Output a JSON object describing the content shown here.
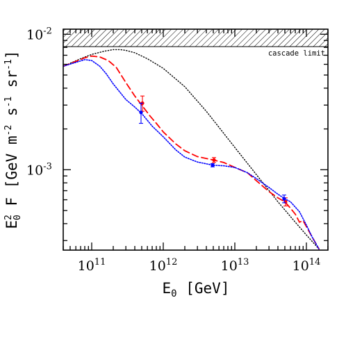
{
  "chart_data": {
    "type": "line",
    "title": "",
    "xlabel": "E₀ [GeV]",
    "xlabel_parts": {
      "main": "E",
      "sub": "0",
      "unit": "[GeV]"
    },
    "ylabel": "E₀² F [GeV m⁻² s⁻¹ sr⁻¹]",
    "ylabel_parts": {
      "main": "E",
      "sub": "0",
      "sup": "2",
      "rest": "F [GeV m",
      "e1": "-2",
      "s": " s",
      "e2": "-1",
      "sr": " sr",
      "e3": "-1",
      "close": "]"
    },
    "xscale": "log",
    "yscale": "log",
    "xlim": [
      40000000000.0,
      200000000000000.0
    ],
    "ylim": [
      0.000255,
      0.0109
    ],
    "x_ticks": [
      {
        "value": 100000000000.0,
        "base": "10",
        "exp": "11"
      },
      {
        "value": 1000000000000.0,
        "base": "10",
        "exp": "12"
      },
      {
        "value": 10000000000000.0,
        "base": "10",
        "exp": "13"
      },
      {
        "value": 100000000000000.0,
        "base": "10",
        "exp": "14"
      }
    ],
    "y_ticks": [
      {
        "value": 0.001,
        "base": "10",
        "exp": "-3"
      },
      {
        "value": 0.01,
        "base": "10",
        "exp": "-2"
      }
    ],
    "cascade_limit": {
      "label": "cascade limit",
      "y_low": 0.0081
    },
    "series": [
      {
        "style": "dotted-black",
        "color": "#000000",
        "x": [
          40000000000.0,
          70000000000.0,
          100000000000.0,
          150000000000.0,
          200000000000.0,
          250000000000.0,
          300000000000.0,
          400000000000.0,
          600000000000.0,
          1000000000000.0,
          2000000000000.0,
          4000000000000.0,
          10000000000000.0,
          20000000000000.0,
          40000000000000.0,
          70000000000000.0,
          100000000000000.0,
          150000000000000.0
        ],
        "y": [
          0.0058,
          0.0066,
          0.0071,
          0.0075,
          0.0077,
          0.0077,
          0.0076,
          0.0073,
          0.0066,
          0.0056,
          0.0041,
          0.0027,
          0.00146,
          0.00092,
          0.00058,
          0.00041,
          0.00033,
          0.00026
        ]
      },
      {
        "style": "dashed-red",
        "color": "#ff0000",
        "x": [
          40000000000.0,
          60000000000.0,
          80000000000.0,
          100000000000.0,
          130000000000.0,
          170000000000.0,
          220000000000.0,
          300000000000.0,
          400000000000.0,
          500000000000.0,
          650000000000.0,
          800000000000.0,
          1000000000000.0,
          1500000000000.0,
          2000000000000.0,
          3000000000000.0,
          5000000000000.0,
          7000000000000.0,
          10000000000000.0,
          15000000000000.0,
          20000000000000.0,
          30000000000000.0,
          40000000000000.0,
          50000000000000.0,
          60000000000000.0,
          70000000000000.0,
          80000000000000.0,
          90000000000000.0,
          100000000000000.0,
          120000000000000.0,
          150000000000000.0
        ],
        "y": [
          0.0058,
          0.0063,
          0.0067,
          0.0069,
          0.0068,
          0.0064,
          0.0057,
          0.0044,
          0.0035,
          0.003,
          0.0025,
          0.0022,
          0.0019,
          0.00155,
          0.00138,
          0.00125,
          0.00118,
          0.00113,
          0.00104,
          0.00095,
          0.00083,
          0.00069,
          0.00062,
          0.00058,
          0.00052,
          0.00047,
          0.00041,
          0.00042,
          0.00038,
          0.00032,
          0.00026
        ]
      },
      {
        "style": "dotted-blue",
        "color": "#0000ff",
        "x": [
          40000000000.0,
          60000000000.0,
          80000000000.0,
          100000000000.0,
          130000000000.0,
          160000000000.0,
          200000000000.0,
          300000000000.0,
          400000000000.0,
          500000000000.0,
          700000000000.0,
          1000000000000.0,
          1500000000000.0,
          2000000000000.0,
          3000000000000.0,
          5000000000000.0,
          7000000000000.0,
          10000000000000.0,
          15000000000000.0,
          20000000000000.0,
          30000000000000.0,
          40000000000000.0,
          50000000000000.0,
          60000000000000.0,
          80000000000000.0,
          100000000000000.0,
          120000000000000.0,
          150000000000000.0
        ],
        "y": [
          0.0058,
          0.0062,
          0.0065,
          0.0064,
          0.0058,
          0.0051,
          0.0043,
          0.0033,
          0.0029,
          0.0026,
          0.0021,
          0.00175,
          0.0014,
          0.00124,
          0.00114,
          0.00108,
          0.00107,
          0.00104,
          0.00095,
          0.00086,
          0.00074,
          0.00066,
          0.00061,
          0.00058,
          0.00049,
          0.00039,
          0.00032,
          0.00026
        ]
      }
    ],
    "error_points": [
      {
        "color": "#ff0000",
        "x": 500000000000.0,
        "y": 0.0031,
        "ylow": 0.0027,
        "yhigh": 0.0035
      },
      {
        "color": "#0000ff",
        "x": 500000000000.0,
        "y": 0.00265,
        "ylow": 0.0022,
        "yhigh": 0.0031
      },
      {
        "color": "#ff0000",
        "x": 5000000000000.0,
        "y": 0.00118,
        "ylow": 0.00113,
        "yhigh": 0.00123
      },
      {
        "color": "#0000ff",
        "x": 5000000000000.0,
        "y": 0.00108,
        "ylow": 0.00105,
        "yhigh": 0.00111
      },
      {
        "color": "#ff0000",
        "x": 50000000000000.0,
        "y": 0.00058,
        "ylow": 0.00054,
        "yhigh": 0.00062
      },
      {
        "color": "#0000ff",
        "x": 50000000000000.0,
        "y": 0.00061,
        "ylow": 0.00057,
        "yhigh": 0.00065
      }
    ]
  }
}
